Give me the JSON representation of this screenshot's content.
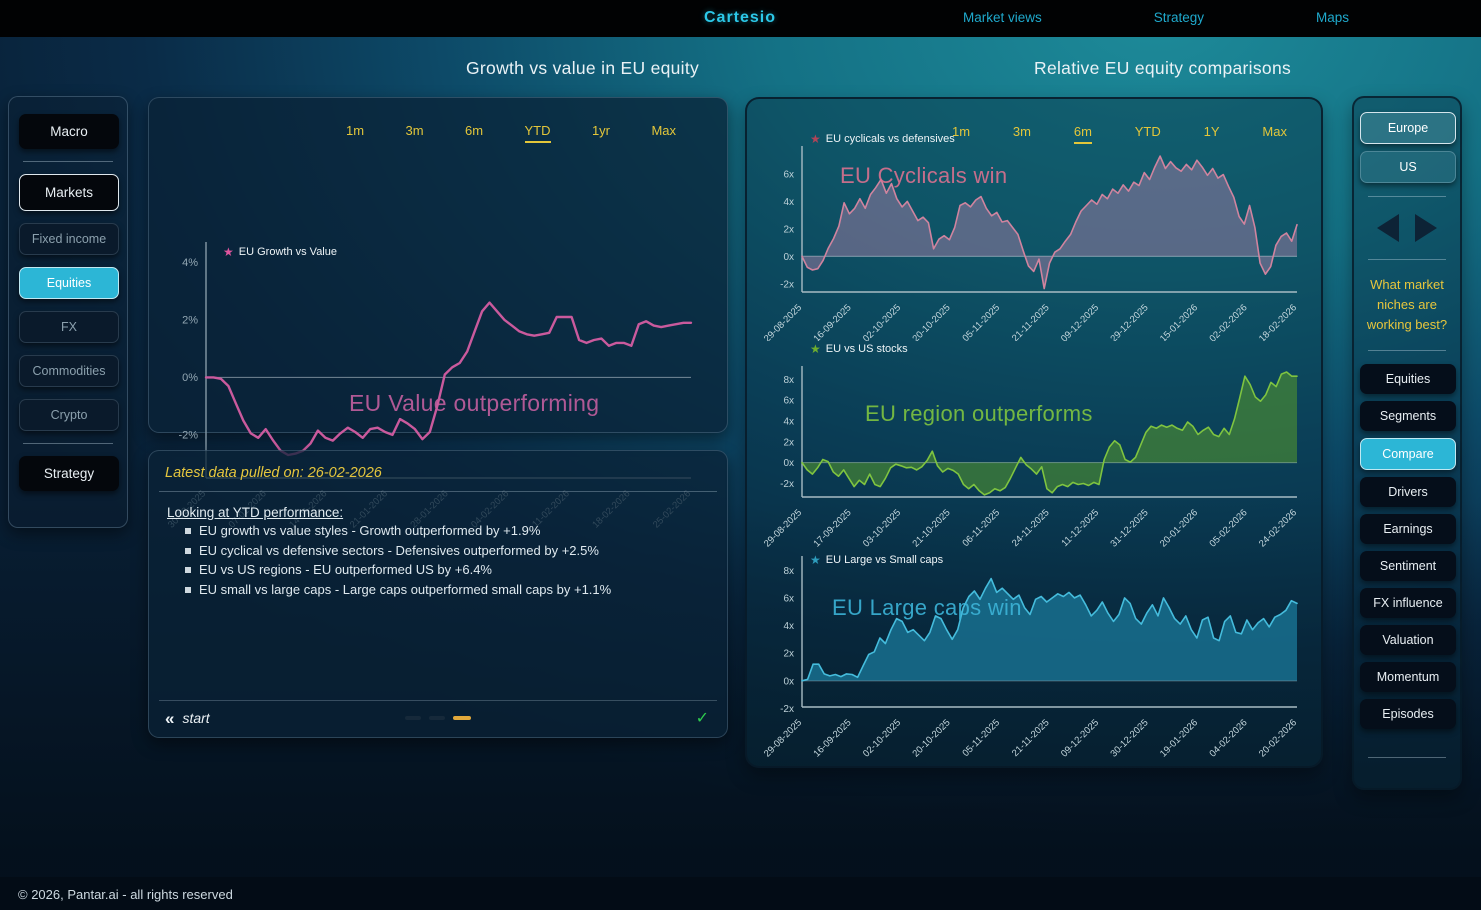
{
  "topbar": {
    "logo": "Cartesio",
    "nav": [
      "Market views",
      "Strategy",
      "Maps"
    ]
  },
  "colors": {
    "accent_cyan": "#2cb6d6",
    "accent_yellow": "#e3c63a",
    "growth_pink": "#ca5a9d",
    "cyclicals_purple_fill": "rgba(150,122,160,0.55)",
    "cyclicals_line": "#d0849f",
    "eu_us_green_fill": "rgba(77,143,48,0.62)",
    "eu_us_line": "#7fc440",
    "caps_blue_fill": "rgba(23,112,143,0.85)",
    "caps_line": "#45bcdc",
    "check_green": "#2ecc4e"
  },
  "icons": {
    "star": "★",
    "back_chevrons": "«",
    "check": "✓"
  },
  "left_sidebar": {
    "groups": [
      {
        "items": [
          {
            "label": "Macro",
            "style": "dark",
            "active": false
          }
        ]
      },
      {
        "items": [
          {
            "label": "Markets",
            "style": "dark",
            "active": true
          },
          {
            "label": "Fixed income",
            "style": "muted",
            "active": false
          },
          {
            "label": "Equities",
            "style": "cyan",
            "active": false
          },
          {
            "label": "FX",
            "style": "muted",
            "active": false
          },
          {
            "label": "Commodities",
            "style": "muted",
            "active": false
          },
          {
            "label": "Crypto",
            "style": "muted",
            "active": false
          }
        ]
      },
      {
        "items": [
          {
            "label": "Strategy",
            "style": "dark",
            "active": false
          }
        ]
      }
    ]
  },
  "growth_section": {
    "title": "Growth vs value in EU equity",
    "ranges": [
      "1m",
      "3m",
      "6m",
      "YTD",
      "1yr",
      "Max"
    ],
    "active_range": "YTD",
    "info": {
      "pulled": "Latest data pulled on: 26-02-2026",
      "heading": "Looking at YTD performance:",
      "bullets": [
        "EU growth vs value styles - Growth outperformed by +1.9%",
        "EU cyclical vs defensive sectors - Defensives outperformed by +2.5%",
        "EU vs US regions - EU outperformed US by +6.4%",
        "EU small vs large caps - Large caps outperformed small caps by +1.1%"
      ],
      "start_label": "start",
      "pager": [
        {
          "active": false
        },
        {
          "active": false
        },
        {
          "active": true
        }
      ]
    }
  },
  "relative_section": {
    "title": "Relative EU equity comparisons",
    "ranges": [
      "1m",
      "3m",
      "6m",
      "YTD",
      "1Y",
      "Max"
    ],
    "active_range": "6m"
  },
  "right_sidebar": {
    "regions": [
      {
        "label": "Europe",
        "active": true
      },
      {
        "label": "US",
        "active": false
      }
    ],
    "question": "What market niches are working best?",
    "items": [
      {
        "label": "Equities",
        "active": false
      },
      {
        "label": "Segments",
        "active": false
      },
      {
        "label": "Compare",
        "active": true
      },
      {
        "label": "Drivers",
        "active": false
      },
      {
        "label": "Earnings",
        "active": false
      },
      {
        "label": "Sentiment",
        "active": false
      },
      {
        "label": "FX influence",
        "active": false
      },
      {
        "label": "Valuation",
        "active": false
      },
      {
        "label": "Momentum",
        "active": false
      },
      {
        "label": "Episodes",
        "active": false
      }
    ]
  },
  "footer": "© 2026, Pantar.ai - all rights reserved",
  "chart_data": [
    {
      "type": "line",
      "series_name": "EU Growth vs Value",
      "annotation": "EU Value outperforming",
      "line_color": "#ca5a9d",
      "star_color": "#e0559e",
      "annotation_color": "#c35f9f",
      "fill": null,
      "ylim": [
        -3.5,
        4.5
      ],
      "yticks": [
        4,
        2,
        0,
        -2
      ],
      "ytick_suffix": "%",
      "x_labels": [
        "30-12-2025",
        "07-01-2026",
        "14-01-2026",
        "21-01-2026",
        "28-01-2026",
        "04-02-2026",
        "11-02-2026",
        "18-02-2026",
        "25-02-2026"
      ],
      "values": [
        0,
        0,
        -0.05,
        -0.3,
        -0.9,
        -1.5,
        -1.95,
        -2.1,
        -1.8,
        -2.2,
        -2.55,
        -2.7,
        -2.65,
        -2.55,
        -2.3,
        -1.85,
        -2.1,
        -2.2,
        -1.95,
        -1.75,
        -1.9,
        -2.1,
        -1.8,
        -1.75,
        -1.9,
        -2.0,
        -1.45,
        -1.6,
        -1.8,
        -2.15,
        -1.9,
        -1.0,
        0.1,
        0.35,
        0.5,
        0.9,
        1.6,
        2.3,
        2.6,
        2.3,
        2.0,
        1.8,
        1.6,
        1.5,
        1.45,
        1.5,
        1.55,
        2.1,
        2.1,
        2.1,
        1.3,
        1.2,
        1.3,
        1.35,
        1.1,
        1.2,
        1.2,
        1.1,
        1.85,
        1.95,
        1.8,
        1.75,
        1.8,
        1.85,
        1.9,
        1.9
      ]
    },
    {
      "type": "area",
      "series_name": "EU cyclicals vs defensives",
      "annotation": "EU Cyclicals win",
      "line_color": "#d0849f",
      "star_color": "#b04458",
      "annotation_color": "#d9718f",
      "fill": "rgba(150,122,160,0.55)",
      "ylim": [
        -2.6,
        7.6
      ],
      "yticks": [
        6,
        4,
        2,
        0,
        -2
      ],
      "ytick_suffix": "x",
      "x_labels": [
        "29-08-2025",
        "16-09-2025",
        "02-10-2025",
        "20-10-2025",
        "05-11-2025",
        "21-11-2025",
        "09-12-2025",
        "29-12-2025",
        "15-01-2026",
        "02-02-2026",
        "18-02-2026"
      ],
      "values": [
        0,
        -0.8,
        -1.0,
        -0.9,
        -0.3,
        0.6,
        1.3,
        2.2,
        3.9,
        3.1,
        3.5,
        4.2,
        3.5,
        4.5,
        5.0,
        5.6,
        4.6,
        5.3,
        4.2,
        3.6,
        4.0,
        3.3,
        2.6,
        2.85,
        2.45,
        0.55,
        1.25,
        1.5,
        1.2,
        2.1,
        3.7,
        3.9,
        3.6,
        4.1,
        4.35,
        3.5,
        2.95,
        3.2,
        2.5,
        2.6,
        2.1,
        1.6,
        0.4,
        -0.7,
        -1.1,
        -0.2,
        -2.35,
        -0.5,
        0.3,
        0.55,
        1.1,
        1.6,
        2.5,
        3.3,
        3.7,
        4.1,
        3.8,
        4.5,
        4.2,
        4.9,
        4.6,
        5.2,
        4.75,
        5.4,
        5.15,
        6.1,
        5.6,
        6.5,
        7.3,
        6.4,
        6.9,
        6.45,
        6.2,
        6.7,
        6.3,
        7.0,
        6.5,
        5.9,
        6.4,
        5.7,
        5.95,
        5.1,
        4.3,
        2.9,
        2.35,
        3.7,
        2.1,
        -0.5,
        -1.3,
        -0.75,
        0.8,
        1.45,
        1.7,
        1.1,
        2.3
      ]
    },
    {
      "type": "area",
      "series_name": "EU vs US stocks",
      "annotation": "EU region outperforms",
      "line_color": "#7fc440",
      "star_color": "#6fae2e",
      "annotation_color": "#7fc440",
      "fill": "rgba(77,143,48,0.62)",
      "ylim": [
        -3.3,
        8.7
      ],
      "yticks": [
        8,
        6,
        4,
        2,
        0,
        -2
      ],
      "ytick_suffix": "x",
      "x_labels": [
        "29-08-2025",
        "17-09-2025",
        "03-10-2025",
        "21-10-2025",
        "06-11-2025",
        "24-11-2025",
        "11-12-2025",
        "31-12-2025",
        "20-01-2026",
        "05-02-2026",
        "24-02-2026"
      ],
      "values": [
        0,
        -0.7,
        -1.1,
        -0.5,
        0.3,
        0.1,
        -0.9,
        -1.3,
        -0.7,
        -1.5,
        -2.3,
        -1.7,
        -2.1,
        -1.1,
        -2.1,
        -2.3,
        -1.5,
        -0.5,
        -0.15,
        -0.3,
        -0.5,
        -0.45,
        -0.7,
        -0.4,
        0.2,
        1.1,
        -0.3,
        -0.9,
        -0.55,
        -0.75,
        -1.1,
        -2.1,
        -2.5,
        -2.1,
        -2.7,
        -3.1,
        -2.9,
        -2.5,
        -2.7,
        -2.4,
        -1.5,
        -0.5,
        0.5,
        -0.2,
        -0.6,
        -1.1,
        -0.4,
        -2.5,
        -2.9,
        -2.3,
        -2.1,
        -2.3,
        -1.9,
        -2.1,
        -2.0,
        -2.2,
        -1.9,
        -2.1,
        0.3,
        1.5,
        2.1,
        1.7,
        0.3,
        0.05,
        0.5,
        1.7,
        2.9,
        3.5,
        3.3,
        3.6,
        3.4,
        3.6,
        3.3,
        3.1,
        3.9,
        3.5,
        2.7,
        3.1,
        3.4,
        2.7,
        2.5,
        3.3,
        2.7,
        4.2,
        6.2,
        8.3,
        7.5,
        6.3,
        5.9,
        6.5,
        7.7,
        7.3,
        8.5,
        8.7,
        8.3,
        8.3
      ]
    },
    {
      "type": "area",
      "series_name": "EU Large vs Small caps",
      "annotation": "EU Large caps win",
      "line_color": "#45bcdc",
      "star_color": "#2e9dbd",
      "annotation_color": "#3cb4d8",
      "fill": "rgba(23,112,143,0.85)",
      "ylim": [
        -1.9,
        8.6
      ],
      "yticks": [
        8,
        6,
        4,
        2,
        0,
        -2
      ],
      "ytick_suffix": "x",
      "x_labels": [
        "29-08-2025",
        "16-09-2025",
        "02-10-2025",
        "20-10-2025",
        "05-11-2025",
        "21-11-2025",
        "09-12-2025",
        "30-12-2025",
        "19-01-2026",
        "04-02-2026",
        "20-02-2026"
      ],
      "values": [
        0,
        0.1,
        1.2,
        1.2,
        0.5,
        0.35,
        0.45,
        0.3,
        0.5,
        0.45,
        0.25,
        1.1,
        1.9,
        2.1,
        3.1,
        2.7,
        3.7,
        4.5,
        4.3,
        3.5,
        3.7,
        3.3,
        2.9,
        3.5,
        4.7,
        4.5,
        3.7,
        3.0,
        3.7,
        5.3,
        6.1,
        6.5,
        5.9,
        6.7,
        7.4,
        6.4,
        6.7,
        6.3,
        5.9,
        6.2,
        5.3,
        4.8,
        5.9,
        6.1,
        5.7,
        6.0,
        6.3,
        6.1,
        6.4,
        6.0,
        6.2,
        5.5,
        4.7,
        5.1,
        5.7,
        4.9,
        4.3,
        4.8,
        6.0,
        5.6,
        4.5,
        4.1,
        4.9,
        5.5,
        4.7,
        6.0,
        5.3,
        4.5,
        4.1,
        4.7,
        3.7,
        3.1,
        4.4,
        4.6,
        3.1,
        2.9,
        4.3,
        4.7,
        3.5,
        3.4,
        4.4,
        3.7,
        4.2,
        4.5,
        3.9,
        4.6,
        4.8,
        5.1,
        5.8,
        5.6
      ]
    }
  ]
}
